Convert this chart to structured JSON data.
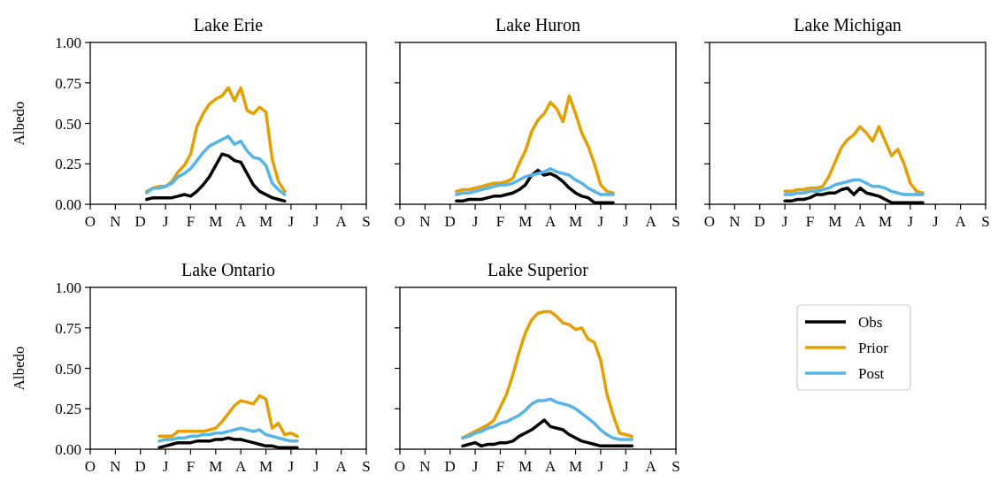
{
  "chart_data": [
    {
      "type": "line",
      "title": "Lake Erie",
      "ylabel": "Albedo",
      "categories": [
        "O",
        null,
        null,
        null,
        "N",
        null,
        null,
        null,
        "D",
        null,
        null,
        null,
        "J",
        null,
        null,
        null,
        "F",
        null,
        null,
        null,
        "M",
        null,
        null,
        null,
        "A",
        null,
        null,
        null,
        "M",
        null,
        null,
        null,
        "J",
        null,
        null,
        null,
        "J",
        null,
        null,
        null,
        "A",
        null,
        null,
        null,
        "S"
      ],
      "ylim": [
        0,
        1
      ],
      "yticks": [
        {
          "value": 0,
          "label": "0.00"
        },
        {
          "value": 0.25,
          "label": "0.25"
        },
        {
          "value": 0.5,
          "label": "0.50"
        },
        {
          "value": 0.75,
          "label": "0.75"
        },
        {
          "value": 1,
          "label": "1.00"
        }
      ],
      "series": [
        {
          "color": "#000000",
          "values": [
            null,
            null,
            null,
            null,
            null,
            null,
            null,
            null,
            null,
            0.03,
            0.04,
            0.04,
            0.04,
            0.04,
            0.05,
            0.06,
            0.05,
            0.08,
            0.12,
            0.17,
            0.24,
            0.31,
            0.3,
            0.27,
            0.26,
            0.19,
            0.12,
            0.08,
            0.06,
            0.04,
            0.03,
            0.02,
            null,
            null,
            null,
            null,
            null,
            null,
            null,
            null,
            null,
            null,
            null,
            null,
            null
          ]
        },
        {
          "color": "#e69f00",
          "values": [
            null,
            null,
            null,
            null,
            null,
            null,
            null,
            null,
            null,
            0.08,
            0.1,
            0.11,
            0.11,
            0.14,
            0.2,
            0.24,
            0.31,
            0.48,
            0.56,
            0.62,
            0.65,
            0.67,
            0.72,
            0.64,
            0.72,
            0.58,
            0.56,
            0.6,
            0.57,
            0.28,
            0.14,
            0.08,
            null,
            null,
            null,
            null,
            null,
            null,
            null,
            null,
            null,
            null,
            null,
            null,
            null
          ]
        },
        {
          "color": "#56b4e9",
          "values": [
            null,
            null,
            null,
            null,
            null,
            null,
            null,
            null,
            null,
            0.07,
            0.1,
            0.1,
            0.11,
            0.13,
            0.17,
            0.19,
            0.22,
            0.27,
            0.32,
            0.36,
            0.38,
            0.4,
            0.42,
            0.37,
            0.39,
            0.33,
            0.29,
            0.28,
            0.24,
            0.13,
            0.09,
            0.06,
            null,
            null,
            null,
            null,
            null,
            null,
            null,
            null,
            null,
            null,
            null,
            null,
            null
          ]
        }
      ]
    },
    {
      "type": "line",
      "title": "Lake Huron",
      "tick_labels": "x",
      "categories": [
        "O",
        null,
        null,
        null,
        "N",
        null,
        null,
        null,
        "D",
        null,
        null,
        null,
        "J",
        null,
        null,
        null,
        "F",
        null,
        null,
        null,
        "M",
        null,
        null,
        null,
        "A",
        null,
        null,
        null,
        "M",
        null,
        null,
        null,
        "J",
        null,
        null,
        null,
        "J",
        null,
        null,
        null,
        "A",
        null,
        null,
        null,
        "S"
      ],
      "ylim": [
        0,
        1
      ],
      "yticks": [
        {
          "value": 0,
          "label": null
        },
        {
          "value": 0.25,
          "label": null
        },
        {
          "value": 0.5,
          "label": null
        },
        {
          "value": 0.75,
          "label": null
        },
        {
          "value": 1,
          "label": null
        }
      ],
      "series": [
        {
          "color": "#000000",
          "values": [
            null,
            null,
            null,
            null,
            null,
            null,
            null,
            null,
            null,
            0.02,
            0.02,
            0.03,
            0.03,
            0.03,
            0.04,
            0.05,
            0.05,
            0.06,
            0.07,
            0.09,
            0.12,
            0.18,
            0.21,
            0.18,
            0.19,
            0.17,
            0.14,
            0.1,
            0.07,
            0.05,
            0.04,
            0.01,
            0.01,
            0.01,
            0.01,
            null,
            null,
            null,
            null,
            null,
            null,
            null,
            null,
            null,
            null
          ]
        },
        {
          "color": "#e69f00",
          "values": [
            null,
            null,
            null,
            null,
            null,
            null,
            null,
            null,
            null,
            0.08,
            0.09,
            0.09,
            0.1,
            0.11,
            0.12,
            0.13,
            0.13,
            0.14,
            0.16,
            0.25,
            0.33,
            0.45,
            0.52,
            0.56,
            0.63,
            0.59,
            0.51,
            0.67,
            0.56,
            0.44,
            0.36,
            0.25,
            0.12,
            0.08,
            0.07,
            null,
            null,
            null,
            null,
            null,
            null,
            null,
            null,
            null,
            null
          ]
        },
        {
          "color": "#56b4e9",
          "values": [
            null,
            null,
            null,
            null,
            null,
            null,
            null,
            null,
            null,
            0.06,
            0.07,
            0.07,
            0.08,
            0.09,
            0.1,
            0.11,
            0.12,
            0.12,
            0.13,
            0.15,
            0.17,
            0.18,
            0.19,
            0.2,
            0.22,
            0.2,
            0.19,
            0.18,
            0.15,
            0.13,
            0.1,
            0.08,
            0.06,
            0.06,
            0.06,
            null,
            null,
            null,
            null,
            null,
            null,
            null,
            null,
            null,
            null
          ]
        }
      ]
    },
    {
      "type": "line",
      "title": "Lake Michigan",
      "tick_labels": "x",
      "categories": [
        "O",
        null,
        null,
        null,
        "N",
        null,
        null,
        null,
        "D",
        null,
        null,
        null,
        "J",
        null,
        null,
        null,
        "F",
        null,
        null,
        null,
        "M",
        null,
        null,
        null,
        "A",
        null,
        null,
        null,
        "M",
        null,
        null,
        null,
        "J",
        null,
        null,
        null,
        "J",
        null,
        null,
        null,
        "A",
        null,
        null,
        null,
        "S"
      ],
      "ylim": [
        0,
        1
      ],
      "yticks": [
        {
          "value": 0,
          "label": null
        },
        {
          "value": 0.25,
          "label": null
        },
        {
          "value": 0.5,
          "label": null
        },
        {
          "value": 0.75,
          "label": null
        },
        {
          "value": 1,
          "label": null
        }
      ],
      "series": [
        {
          "color": "#000000",
          "values": [
            null,
            null,
            null,
            null,
            null,
            null,
            null,
            null,
            null,
            null,
            null,
            null,
            0.02,
            0.02,
            0.03,
            0.03,
            0.04,
            0.06,
            0.06,
            0.07,
            0.07,
            0.09,
            0.1,
            0.06,
            0.1,
            0.07,
            0.06,
            0.05,
            0.03,
            0.01,
            0.01,
            0.01,
            0.01,
            0.01,
            0.01,
            null,
            null,
            null,
            null,
            null,
            null,
            null,
            null,
            null,
            null
          ]
        },
        {
          "color": "#e69f00",
          "values": [
            null,
            null,
            null,
            null,
            null,
            null,
            null,
            null,
            null,
            null,
            null,
            null,
            0.08,
            0.08,
            0.09,
            0.09,
            0.1,
            0.1,
            0.11,
            0.17,
            0.26,
            0.35,
            0.4,
            0.43,
            0.48,
            0.44,
            0.39,
            0.48,
            0.39,
            0.3,
            0.34,
            0.25,
            0.13,
            0.08,
            0.07,
            null,
            null,
            null,
            null,
            null,
            null,
            null,
            null,
            null,
            null
          ]
        },
        {
          "color": "#56b4e9",
          "values": [
            null,
            null,
            null,
            null,
            null,
            null,
            null,
            null,
            null,
            null,
            null,
            null,
            0.06,
            0.06,
            0.07,
            0.07,
            0.08,
            0.08,
            0.09,
            0.1,
            0.12,
            0.13,
            0.14,
            0.15,
            0.15,
            0.13,
            0.11,
            0.11,
            0.1,
            0.08,
            0.07,
            0.06,
            0.06,
            0.06,
            0.06,
            null,
            null,
            null,
            null,
            null,
            null,
            null,
            null,
            null,
            null
          ]
        }
      ]
    },
    {
      "type": "line",
      "title": "Lake Ontario",
      "ylabel": "Albedo",
      "categories": [
        "O",
        null,
        null,
        null,
        "N",
        null,
        null,
        null,
        "D",
        null,
        null,
        null,
        "J",
        null,
        null,
        null,
        "F",
        null,
        null,
        null,
        "M",
        null,
        null,
        null,
        "A",
        null,
        null,
        null,
        "M",
        null,
        null,
        null,
        "J",
        null,
        null,
        null,
        "J",
        null,
        null,
        null,
        "A",
        null,
        null,
        null,
        "S"
      ],
      "ylim": [
        0,
        1
      ],
      "yticks": [
        {
          "value": 0,
          "label": "0.00"
        },
        {
          "value": 0.25,
          "label": "0.25"
        },
        {
          "value": 0.5,
          "label": "0.50"
        },
        {
          "value": 0.75,
          "label": "0.75"
        },
        {
          "value": 1,
          "label": "1.00"
        }
      ],
      "series": [
        {
          "color": "#000000",
          "values": [
            null,
            null,
            null,
            null,
            null,
            null,
            null,
            null,
            null,
            null,
            null,
            0.01,
            0.02,
            0.03,
            0.04,
            0.04,
            0.04,
            0.05,
            0.05,
            0.05,
            0.06,
            0.06,
            0.07,
            0.06,
            0.06,
            0.05,
            0.04,
            0.03,
            0.02,
            0.02,
            0.01,
            0.01,
            0.01,
            0.01,
            null,
            null,
            null,
            null,
            null,
            null,
            null,
            null,
            null,
            null,
            null
          ]
        },
        {
          "color": "#e69f00",
          "values": [
            null,
            null,
            null,
            null,
            null,
            null,
            null,
            null,
            null,
            null,
            null,
            0.08,
            0.08,
            0.08,
            0.11,
            0.11,
            0.11,
            0.11,
            0.11,
            0.12,
            0.13,
            0.17,
            0.22,
            0.27,
            0.3,
            0.29,
            0.28,
            0.33,
            0.31,
            0.13,
            0.16,
            0.09,
            0.1,
            0.08,
            null,
            null,
            null,
            null,
            null,
            null,
            null,
            null,
            null,
            null,
            null
          ]
        },
        {
          "color": "#56b4e9",
          "values": [
            null,
            null,
            null,
            null,
            null,
            null,
            null,
            null,
            null,
            null,
            null,
            0.05,
            0.06,
            0.06,
            0.07,
            0.07,
            0.08,
            0.08,
            0.09,
            0.09,
            0.1,
            0.1,
            0.11,
            0.12,
            0.13,
            0.12,
            0.11,
            0.12,
            0.09,
            0.08,
            0.07,
            0.06,
            0.05,
            0.05,
            null,
            null,
            null,
            null,
            null,
            null,
            null,
            null,
            null,
            null,
            null
          ]
        }
      ]
    },
    {
      "type": "line",
      "title": "Lake Superior",
      "tick_labels": "x",
      "legend": "right",
      "categories": [
        "O",
        null,
        null,
        null,
        "N",
        null,
        null,
        null,
        "D",
        null,
        null,
        null,
        "J",
        null,
        null,
        null,
        "F",
        null,
        null,
        null,
        "M",
        null,
        null,
        null,
        "A",
        null,
        null,
        null,
        "M",
        null,
        null,
        null,
        "J",
        null,
        null,
        null,
        "J",
        null,
        null,
        null,
        "A",
        null,
        null,
        null,
        "S"
      ],
      "ylim": [
        0,
        1
      ],
      "yticks": [
        {
          "value": 0,
          "label": null
        },
        {
          "value": 0.25,
          "label": null
        },
        {
          "value": 0.5,
          "label": null
        },
        {
          "value": 0.75,
          "label": null
        },
        {
          "value": 1,
          "label": null
        }
      ],
      "series": [
        {
          "name": "Obs",
          "color": "#000000",
          "values": [
            null,
            null,
            null,
            null,
            null,
            null,
            null,
            null,
            null,
            null,
            0.02,
            0.03,
            0.04,
            0.02,
            0.03,
            0.03,
            0.04,
            0.04,
            0.05,
            0.08,
            0.1,
            0.12,
            0.15,
            0.18,
            0.14,
            0.13,
            0.12,
            0.09,
            0.07,
            0.05,
            0.04,
            0.03,
            0.02,
            0.02,
            0.02,
            0.02,
            0.02,
            0.02,
            null,
            null,
            null,
            null,
            null,
            null,
            null
          ]
        },
        {
          "name": "Prior",
          "color": "#e69f00",
          "values": [
            null,
            null,
            null,
            null,
            null,
            null,
            null,
            null,
            null,
            null,
            0.07,
            0.09,
            0.11,
            0.13,
            0.15,
            0.18,
            0.26,
            0.34,
            0.46,
            0.6,
            0.72,
            0.8,
            0.84,
            0.85,
            0.85,
            0.82,
            0.78,
            0.77,
            0.74,
            0.75,
            0.68,
            0.66,
            0.55,
            0.34,
            0.21,
            0.1,
            0.09,
            0.08,
            null,
            null,
            null,
            null,
            null,
            null,
            null
          ]
        },
        {
          "name": "Post",
          "color": "#56b4e9",
          "values": [
            null,
            null,
            null,
            null,
            null,
            null,
            null,
            null,
            null,
            null,
            0.07,
            0.08,
            0.1,
            0.11,
            0.13,
            0.14,
            0.16,
            0.17,
            0.19,
            0.21,
            0.24,
            0.28,
            0.3,
            0.3,
            0.31,
            0.29,
            0.28,
            0.27,
            0.25,
            0.22,
            0.19,
            0.16,
            0.12,
            0.09,
            0.07,
            0.06,
            0.06,
            0.06,
            null,
            null,
            null,
            null,
            null,
            null,
            null
          ]
        }
      ]
    }
  ]
}
